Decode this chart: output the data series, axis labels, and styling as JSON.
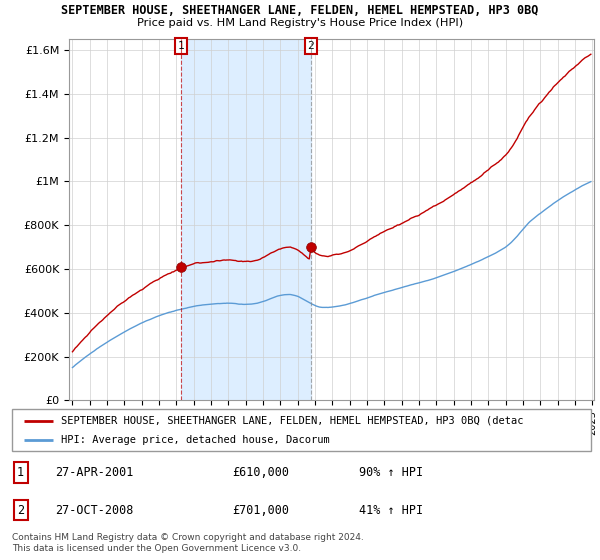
{
  "title": "SEPTEMBER HOUSE, SHEETHANGER LANE, FELDEN, HEMEL HEMPSTEAD, HP3 0BQ",
  "subtitle": "Price paid vs. HM Land Registry's House Price Index (HPI)",
  "ylabel_ticks": [
    "£0",
    "£200K",
    "£400K",
    "£600K",
    "£800K",
    "£1M",
    "£1.2M",
    "£1.4M",
    "£1.6M"
  ],
  "ylabel_values": [
    0,
    200000,
    400000,
    600000,
    800000,
    1000000,
    1200000,
    1400000,
    1600000
  ],
  "ylim": [
    0,
    1650000
  ],
  "x_start_year": 1995,
  "x_end_year": 2025,
  "hpi_color": "#5b9bd5",
  "price_color": "#c00000",
  "shade_color": "#ddeeff",
  "sale1_x": 2001.25,
  "sale1_price": 610000,
  "sale2_x": 2008.75,
  "sale2_price": 701000,
  "sale1_date": "27-APR-2001",
  "sale2_date": "27-OCT-2008",
  "sale1_hpi_pct": "90%",
  "sale2_hpi_pct": "41%",
  "legend_property": "SEPTEMBER HOUSE, SHEETHANGER LANE, FELDEN, HEMEL HEMPSTEAD, HP3 0BQ (detac",
  "legend_hpi": "HPI: Average price, detached house, Dacorum",
  "footer": "Contains HM Land Registry data © Crown copyright and database right 2024.\nThis data is licensed under the Open Government Licence v3.0.",
  "background_color": "#ffffff",
  "grid_color": "#d0d0d0"
}
